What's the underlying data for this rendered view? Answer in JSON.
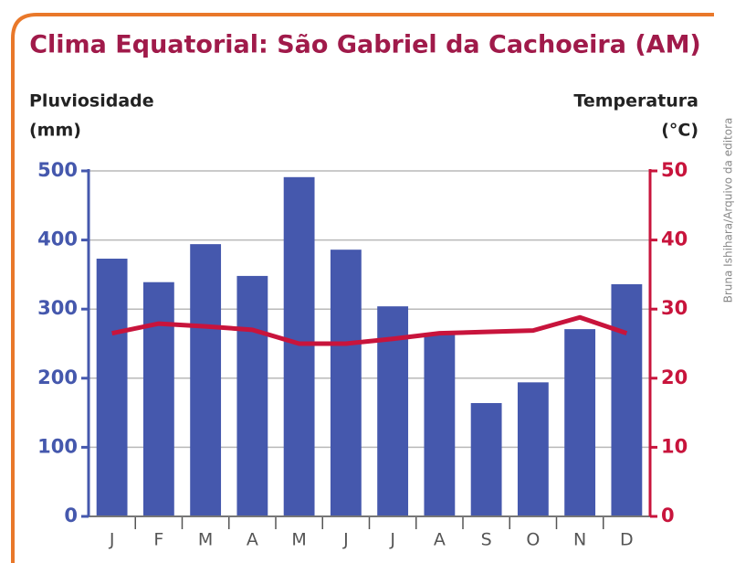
{
  "chart_data": {
    "type": "bar_line",
    "title": "Clima Equatorial: São Gabriel da Cachoeira (AM)",
    "y_label": [
      "Pluviosidade",
      "(mm)"
    ],
    "y2_label": [
      "Temperatura",
      "(°C)"
    ],
    "credit": "Bruna Ishihara/Arquivo da editora",
    "categories": [
      "J",
      "F",
      "M",
      "A",
      "M",
      "J",
      "J",
      "A",
      "S",
      "O",
      "N",
      "D"
    ],
    "series": [
      {
        "name": "Pluviosidade",
        "type": "bar",
        "color": "#4558ad",
        "axis": "y",
        "values": [
          373,
          339,
          394,
          348,
          491,
          386,
          304,
          265,
          164,
          194,
          271,
          336
        ]
      },
      {
        "name": "Temperatura",
        "type": "line",
        "color": "#c8143c",
        "axis": "y2",
        "values": [
          26.5,
          27.9,
          27.5,
          27,
          25,
          25,
          25.7,
          26.5,
          26.7,
          26.9,
          28.8,
          26.5
        ]
      }
    ],
    "ylim": [
      0,
      500
    ],
    "yticks": [
      0,
      100,
      200,
      300,
      400,
      500
    ],
    "y2lim": [
      0,
      50
    ],
    "y2ticks": [
      0,
      10,
      20,
      30,
      40,
      50
    ],
    "grid": true
  }
}
